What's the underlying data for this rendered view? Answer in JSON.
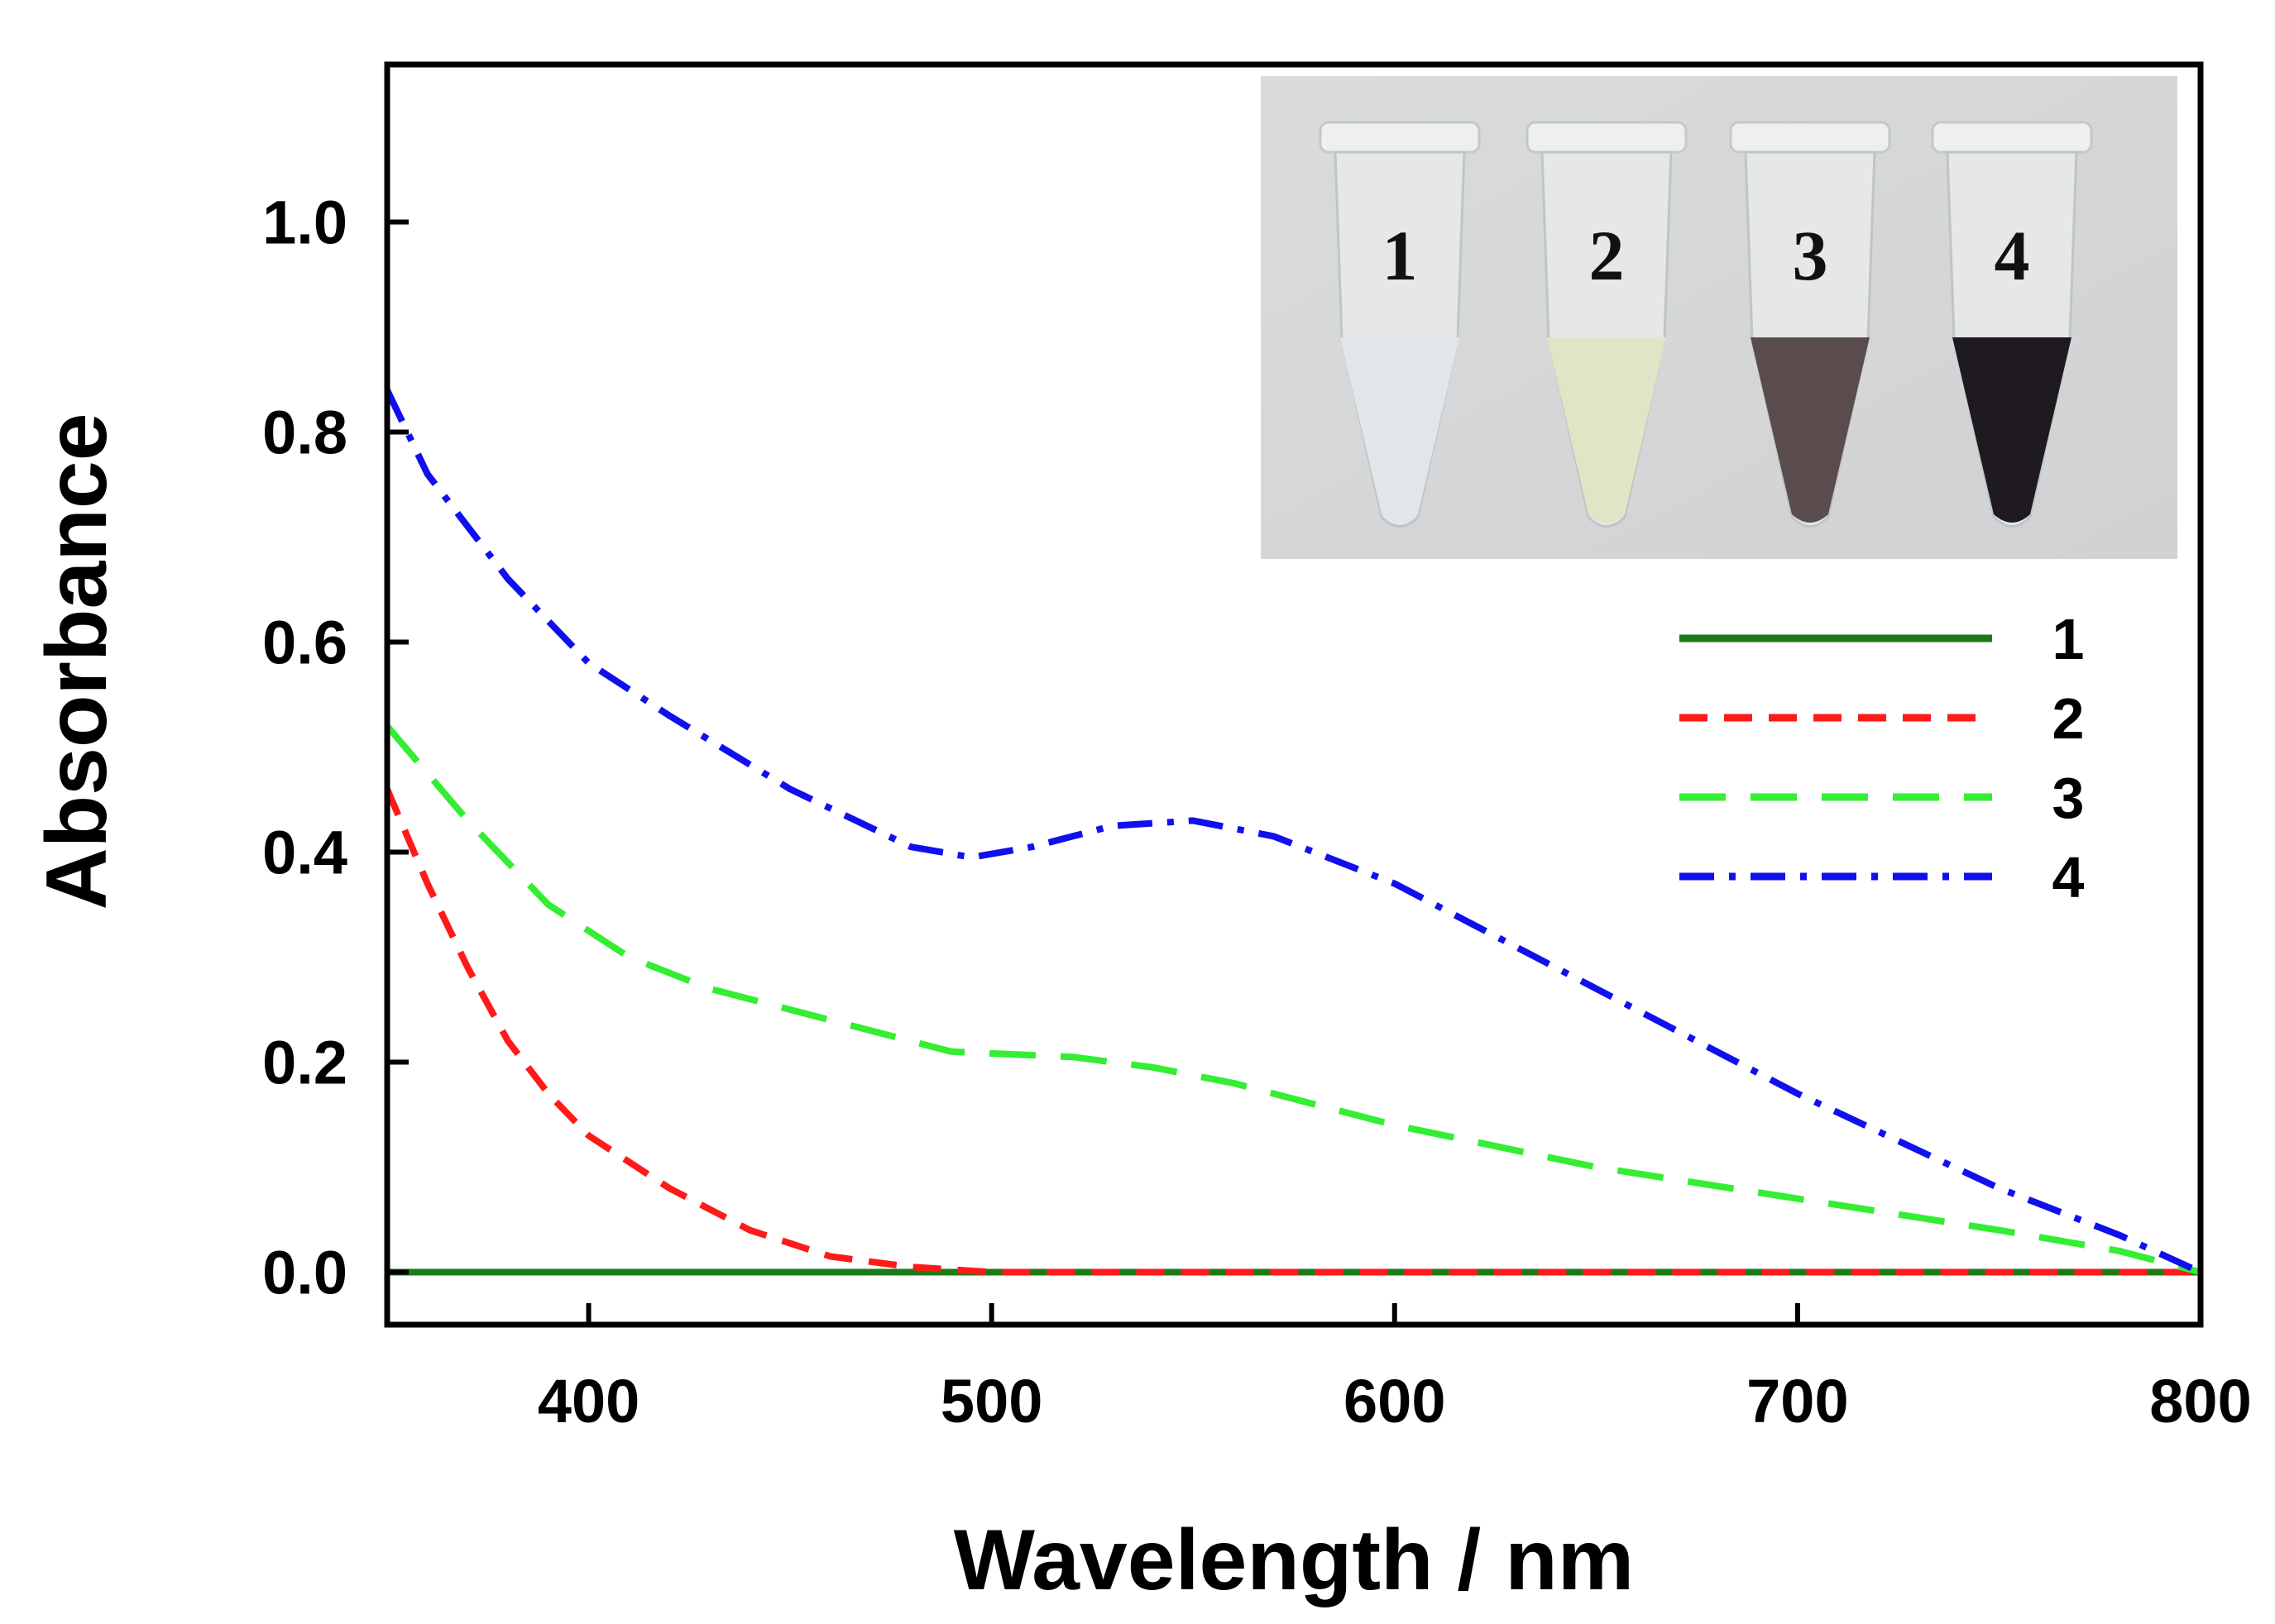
{
  "chart_data": {
    "type": "line",
    "title": "",
    "xlabel": "Wavelength / nm",
    "ylabel": "Absorbance",
    "xlim": [
      350,
      800
    ],
    "ylim": [
      -0.05,
      1.15
    ],
    "xticks": [
      400,
      500,
      600,
      700,
      800
    ],
    "yticks": [
      0.0,
      0.2,
      0.4,
      0.6,
      0.8,
      1.0
    ],
    "xtick_labels": [
      "400",
      "500",
      "600",
      "700",
      "800"
    ],
    "ytick_labels": [
      "0.0",
      "0.2",
      "0.4",
      "0.6",
      "0.8",
      "1.0"
    ],
    "grid": false,
    "legend_position": "right, below inset",
    "series": [
      {
        "name": "1",
        "color": "#1a7a1a",
        "dash": "solid",
        "x": [
          350,
          400,
          450,
          500,
          550,
          600,
          650,
          700,
          750,
          800
        ],
        "y": [
          0.0,
          0.0,
          0.0,
          0.0,
          0.0,
          0.0,
          0.0,
          0.0,
          0.0,
          0.0
        ]
      },
      {
        "name": "2",
        "color": "#ff1a1a",
        "dash": "dash",
        "x": [
          350,
          360,
          370,
          380,
          390,
          400,
          420,
          440,
          460,
          480,
          500,
          550,
          600,
          650,
          700,
          750,
          800
        ],
        "y": [
          0.46,
          0.37,
          0.29,
          0.22,
          0.17,
          0.13,
          0.08,
          0.04,
          0.015,
          0.005,
          0.0,
          0.0,
          0.0,
          0.0,
          0.0,
          0.0,
          0.0
        ]
      },
      {
        "name": "3",
        "color": "#33ee33",
        "dash": "long-dash",
        "x": [
          350,
          370,
          390,
          410,
          430,
          460,
          490,
          520,
          540,
          560,
          600,
          650,
          700,
          750,
          780,
          800
        ],
        "y": [
          0.52,
          0.43,
          0.35,
          0.3,
          0.27,
          0.24,
          0.21,
          0.205,
          0.195,
          0.18,
          0.14,
          0.1,
          0.07,
          0.04,
          0.02,
          0.0
        ]
      },
      {
        "name": "4",
        "color": "#1010ee",
        "dash": "dash-dot",
        "x": [
          350,
          360,
          380,
          400,
          420,
          450,
          480,
          495,
          510,
          530,
          550,
          570,
          600,
          650,
          700,
          750,
          780,
          800
        ],
        "y": [
          0.84,
          0.76,
          0.66,
          0.58,
          0.53,
          0.46,
          0.405,
          0.395,
          0.405,
          0.425,
          0.43,
          0.415,
          0.37,
          0.27,
          0.17,
          0.08,
          0.035,
          0.0
        ]
      }
    ]
  },
  "inset": {
    "tube_labels": [
      "1",
      "2",
      "3",
      "4"
    ],
    "tube_liquid_colors": [
      "#e2e6ea",
      "#dfe6c6",
      "#5a4b4d",
      "#1e1a20"
    ]
  }
}
